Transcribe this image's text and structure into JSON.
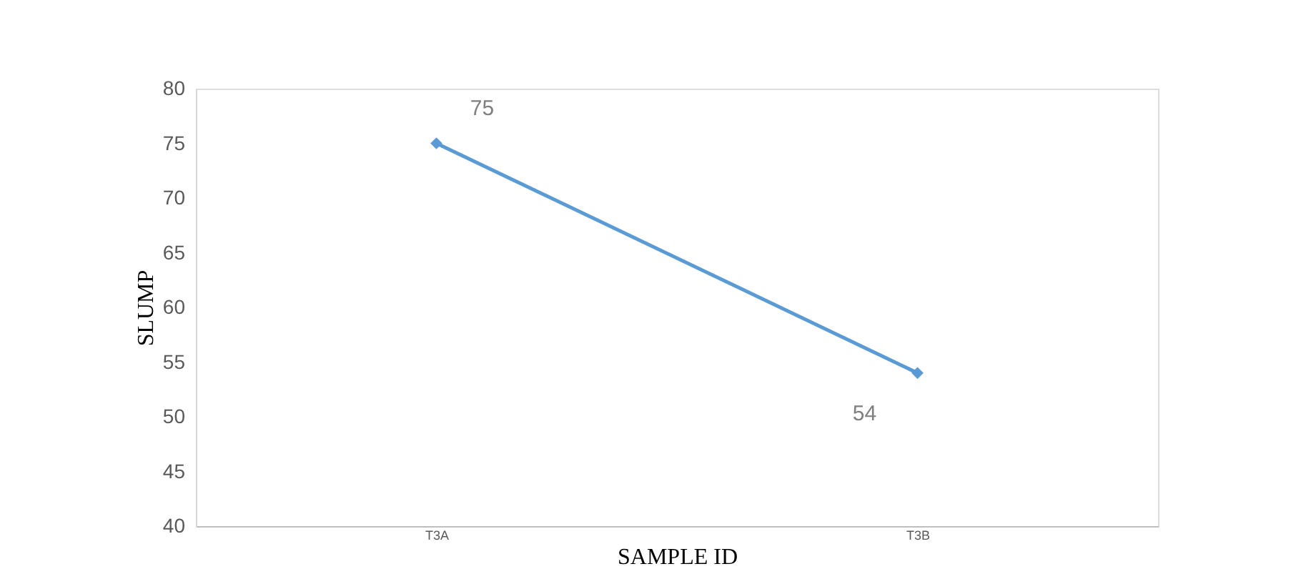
{
  "chart_data": {
    "type": "line",
    "xlabel": "SAMPLE ID",
    "ylabel": "SLUMP",
    "categories": [
      "T3A",
      "T3B"
    ],
    "series": [
      {
        "color": "#5b9bd5",
        "values": [
          75,
          54
        ]
      }
    ],
    "ylim": [
      40,
      80
    ],
    "yticks": [
      40,
      45,
      50,
      55,
      60,
      65,
      70,
      75,
      80
    ],
    "marker": "diamond",
    "line_style": "solid",
    "data_labels": true,
    "grid": false,
    "legend": false
  }
}
